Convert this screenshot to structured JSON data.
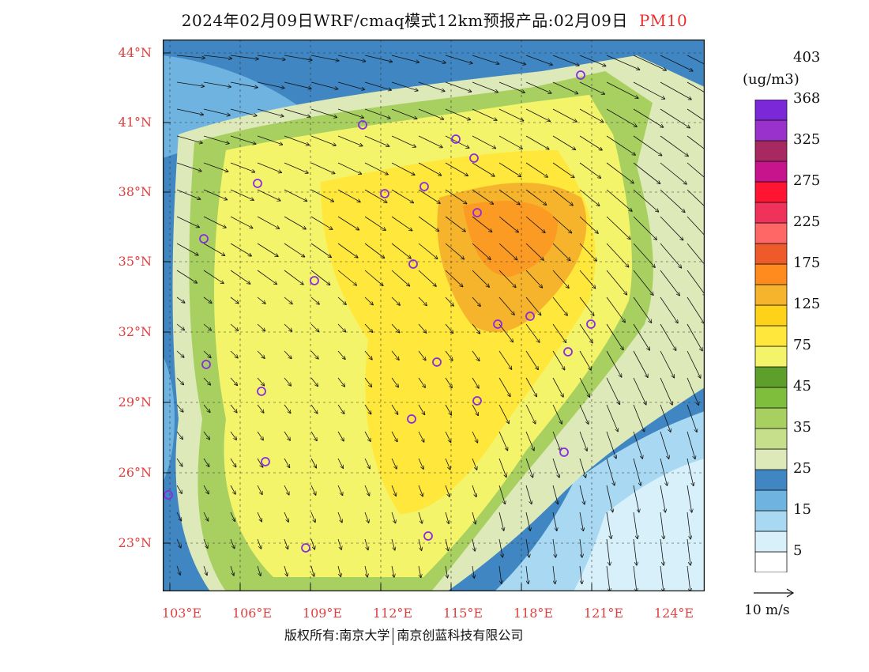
{
  "title": {
    "text": "2024年02月09日WRF/cmaq模式12km预报产品:02月09日",
    "pollutant": "PM10"
  },
  "map": {
    "lat_labels": [
      "44°N",
      "41°N",
      "38°N",
      "35°N",
      "32°N",
      "29°N",
      "26°N",
      "23°N"
    ],
    "lon_labels": [
      "103°E",
      "106°E",
      "109°E",
      "112°E",
      "115°E",
      "118°E",
      "121°E",
      "124°E"
    ]
  },
  "legend": {
    "unit": "(ug/m3)",
    "colors": [
      "#ffffff",
      "#d8f0fa",
      "#a8d8f2",
      "#6fb4e0",
      "#3f86c2",
      "#dde9b8",
      "#c5df8a",
      "#a8d060",
      "#7fbe3c",
      "#5e9e2a",
      "#f4f46a",
      "#ffe73c",
      "#ffd21a",
      "#f6b42c",
      "#ff8a1e",
      "#ee5a2a",
      "#ff6666",
      "#f0325a",
      "#ff1432",
      "#c8148c",
      "#a82860",
      "#9932cc",
      "#7a28d8"
    ],
    "labels": [
      "5",
      "15",
      "25",
      "35",
      "45",
      "75",
      "125",
      "175",
      "225",
      "275",
      "325",
      "368",
      "403"
    ]
  },
  "wind_reference": "10 m/s",
  "copyright": {
    "left": "版权所有:南京大学",
    "right": "南京创蓝科技有限公司"
  }
}
